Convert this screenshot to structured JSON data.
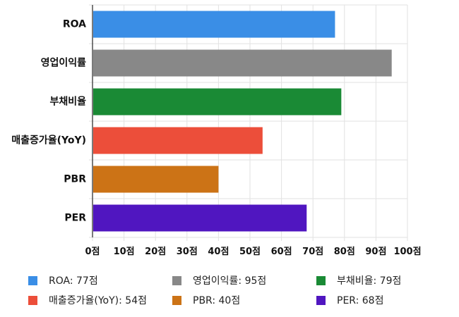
{
  "chart_data": {
    "type": "bar",
    "orientation": "horizontal",
    "categories": [
      "ROA",
      "영업이익률",
      "부채비율",
      "매출증가율(YoY)",
      "PBR",
      "PER"
    ],
    "values": [
      77,
      95,
      79,
      54,
      40,
      68
    ],
    "colors": [
      "#3a8ee6",
      "#888888",
      "#1a8a35",
      "#ec4e3a",
      "#cc7316",
      "#5016c0"
    ],
    "xlim": [
      0,
      100
    ],
    "x_ticks": [
      "0점",
      "10점",
      "20점",
      "30점",
      "40점",
      "50점",
      "60점",
      "70점",
      "80점",
      "90점",
      "100점"
    ],
    "grid": true,
    "legend_position": "bottom",
    "legend": [
      "ROA: 77점",
      "영업이익률: 95점",
      "부채비율: 79점",
      "매출증가율(YoY): 54점",
      "PBR: 40점",
      "PER: 68점"
    ]
  }
}
